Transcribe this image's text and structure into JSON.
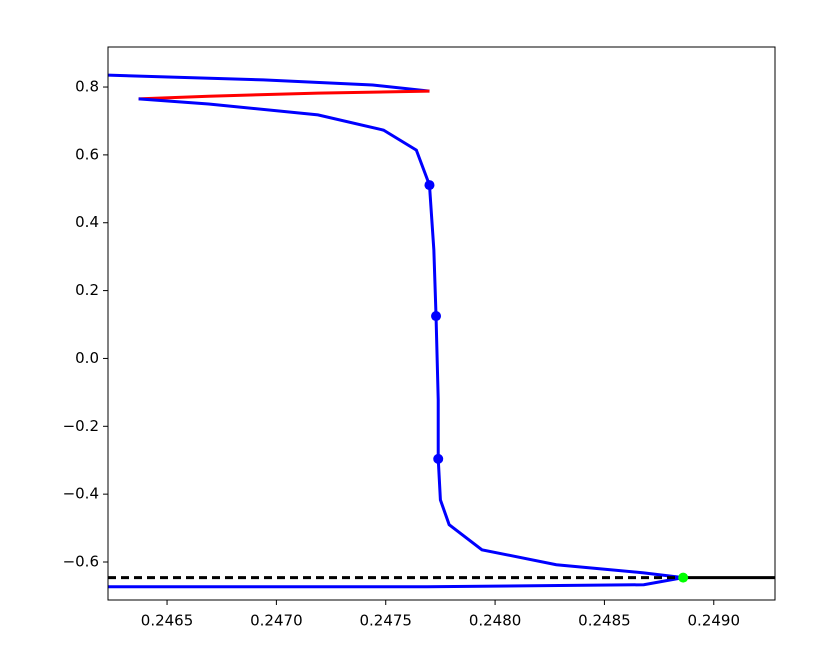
{
  "chart_data": {
    "type": "line",
    "xlim": [
      0.24623,
      0.24928
    ],
    "ylim": [
      -0.712,
      0.918
    ],
    "xticks": [
      0.2465,
      {
        "value": 0.247,
        "label": "0.2470"
      },
      0.2475,
      {
        "value": 0.248,
        "label": "0.2480"
      },
      0.2485,
      {
        "value": 0.249,
        "label": "0.2490"
      }
    ],
    "yticks": [
      {
        "value": -0.6,
        "label": "−0.6"
      },
      {
        "value": -0.4,
        "label": "−0.4"
      },
      {
        "value": -0.2,
        "label": "−0.2"
      },
      {
        "value": 0,
        "label": "0.0"
      },
      0.2,
      0.4,
      0.6,
      0.8
    ],
    "grid": false,
    "series": [
      {
        "color": "#0000ff",
        "linestyle": "solid",
        "x": [
          0.24623,
          0.24694,
          0.24744,
          0.2477
        ],
        "y": [
          0.835,
          0.821,
          0.806,
          0.788
        ]
      },
      {
        "color": "#ff0000",
        "linestyle": "solid",
        "x": [
          0.2477,
          0.24719,
          0.24669,
          0.24637
        ],
        "y": [
          0.788,
          0.782,
          0.773,
          0.765
        ]
      },
      {
        "color": "#0000ff",
        "linestyle": "solid",
        "x": [
          0.24637,
          0.24669,
          0.24719,
          0.24749,
          0.24764,
          0.2477,
          0.24772,
          0.24773,
          0.24774,
          0.24774,
          0.24775,
          0.24779,
          0.24794,
          0.24828,
          0.24868,
          0.24886,
          0.24868,
          0.24769,
          0.24623
        ],
        "y": [
          0.765,
          0.75,
          0.718,
          0.673,
          0.614,
          0.511,
          0.32,
          0.125,
          -0.122,
          -0.296,
          -0.417,
          -0.49,
          -0.564,
          -0.608,
          -0.632,
          -0.646,
          -0.667,
          -0.673,
          -0.673
        ]
      },
      {
        "color": "#000000",
        "linestyle": "dashed",
        "x": [
          0.24623,
          0.24886
        ],
        "y": [
          -0.646,
          -0.646
        ]
      },
      {
        "color": "#000000",
        "linestyle": "solid",
        "x": [
          0.24886,
          0.24928
        ],
        "y": [
          -0.646,
          -0.646
        ]
      },
      {
        "color": "#0000ff",
        "linestyle": "none",
        "marker": true,
        "x": [
          0.2477,
          0.24773,
          0.24774
        ],
        "y": [
          0.511,
          0.125,
          -0.296
        ]
      },
      {
        "color": "#00ff00",
        "linestyle": "none",
        "marker": true,
        "x": [
          0.24886
        ],
        "y": [
          -0.646
        ]
      }
    ]
  }
}
